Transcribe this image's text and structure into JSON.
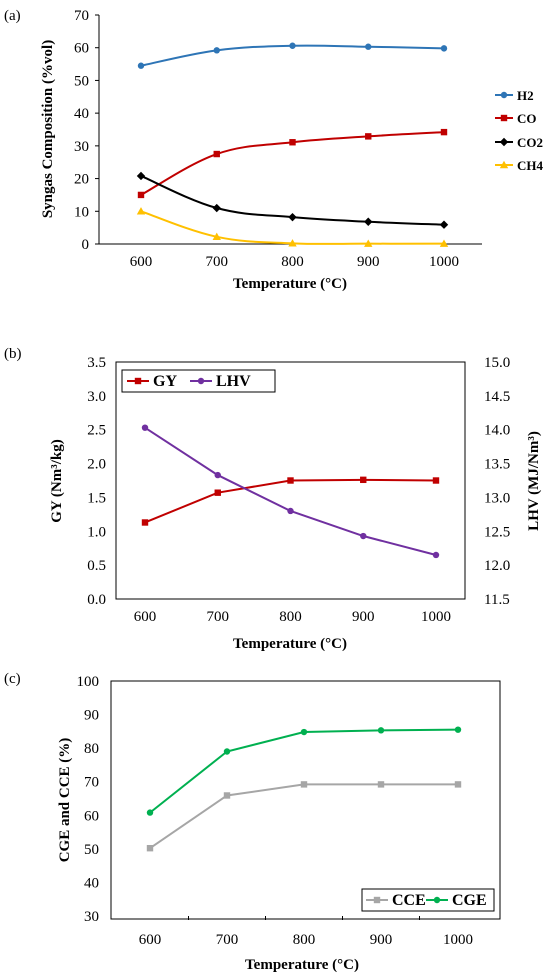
{
  "chart_data": [
    {
      "panel": "(a)",
      "type": "line",
      "xlabel": "Temperature (°C)",
      "ylabel": "Syngas Composition (%vol)",
      "x": [
        600,
        700,
        800,
        900,
        1000
      ],
      "xticks": [
        "600",
        "700",
        "800",
        "900",
        "1000"
      ],
      "ylim": [
        0,
        70
      ],
      "yticks": [
        "0",
        "10",
        "20",
        "30",
        "40",
        "50",
        "60",
        "70"
      ],
      "grid": false,
      "legend_position": "right",
      "series": [
        {
          "name": "H2",
          "values": [
            54.5,
            59.2,
            60.6,
            60.3,
            59.8
          ],
          "color": "#2E75B6",
          "marker": "circle"
        },
        {
          "name": "CO",
          "values": [
            15.0,
            27.5,
            31.1,
            32.9,
            34.2
          ],
          "color": "#C00000",
          "marker": "square"
        },
        {
          "name": "CO2",
          "values": [
            20.8,
            11.0,
            8.2,
            6.8,
            5.9
          ],
          "color": "#000000",
          "marker": "diamond"
        },
        {
          "name": "CH4",
          "values": [
            10.0,
            2.2,
            0.2,
            0.1,
            0.1
          ],
          "color": "#FFC000",
          "marker": "triangle"
        }
      ]
    },
    {
      "panel": "(b)",
      "type": "line",
      "xlabel": "Temperature (°C)",
      "ylabel": "GY (Nm³/kg)",
      "ylabel_right": "LHV (MJ/Nm³)",
      "x": [
        600,
        700,
        800,
        900,
        1000
      ],
      "xticks": [
        "600",
        "700",
        "800",
        "900",
        "1000"
      ],
      "ylim": [
        0,
        3.5
      ],
      "yticks": [
        "0.0",
        "0.5",
        "1.0",
        "1.5",
        "2.0",
        "2.5",
        "3.0",
        "3.5"
      ],
      "ylim_right": [
        11.5,
        15.0
      ],
      "yticks_right": [
        "11.5",
        "12.0",
        "12.5",
        "13.0",
        "13.5",
        "14.0",
        "14.5",
        "15.0"
      ],
      "grid": false,
      "legend_position": "top-left",
      "series": [
        {
          "name": "GY",
          "axis": "left",
          "values": [
            1.13,
            1.57,
            1.75,
            1.76,
            1.75
          ],
          "color": "#C00000",
          "marker": "square"
        },
        {
          "name": "LHV",
          "axis": "right",
          "values": [
            14.03,
            13.33,
            12.8,
            12.43,
            12.15
          ],
          "color": "#7030A0",
          "marker": "circle"
        }
      ]
    },
    {
      "panel": "(c)",
      "type": "line",
      "xlabel": "Temperature (°C)",
      "ylabel": "CGE and CCE (%)",
      "x": [
        600,
        700,
        800,
        900,
        1000
      ],
      "xticks": [
        "600",
        "700",
        "800",
        "900",
        "1000"
      ],
      "ylim": [
        30,
        100
      ],
      "yticks": [
        "30",
        "40",
        "50",
        "60",
        "70",
        "80",
        "90",
        "100"
      ],
      "grid": false,
      "legend_position": "bottom-right",
      "series": [
        {
          "name": "CCE",
          "values": [
            50.2,
            65.9,
            69.2,
            69.2,
            69.2
          ],
          "color": "#A6A6A6",
          "marker": "square"
        },
        {
          "name": "CGE",
          "values": [
            60.8,
            79.0,
            84.8,
            85.3,
            85.5
          ],
          "color": "#00B050",
          "marker": "circle"
        }
      ]
    }
  ]
}
